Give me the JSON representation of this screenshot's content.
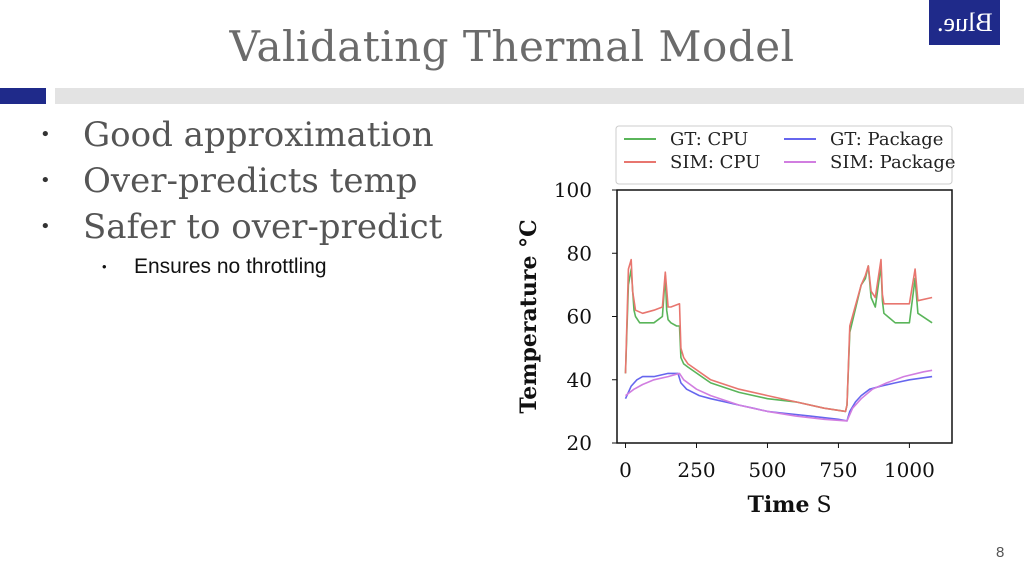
{
  "slide": {
    "title": "Validating Thermal Model",
    "logo_text": "Blue.",
    "page_number": "8",
    "bullets": [
      "Good approximation",
      "Over-predicts temp",
      "Safer to over-predict"
    ],
    "sub_bullets": [
      "Ensures no throttling"
    ],
    "colors": {
      "accent": "#1f2a8a",
      "title": "#6b6b6b",
      "rule": "#e3e3e3"
    }
  },
  "chart_data": {
    "type": "line",
    "title": "",
    "xlabel_bold": "Time",
    "xlabel_unit": "S",
    "ylabel": "Temperature °C",
    "xlim": [
      -30,
      1150
    ],
    "ylim": [
      20,
      100
    ],
    "xticks": [
      0,
      250,
      500,
      750,
      1000
    ],
    "yticks": [
      20,
      40,
      60,
      80,
      100
    ],
    "grid": false,
    "legend_position": "top",
    "series": [
      {
        "name": "GT: CPU",
        "color": "#5ab55a",
        "x": [
          0,
          10,
          20,
          30,
          35,
          50,
          55,
          100,
          130,
          140,
          145,
          150,
          160,
          180,
          190,
          195,
          205,
          220,
          300,
          400,
          500,
          600,
          700,
          775,
          780,
          790,
          830,
          845,
          855,
          865,
          880,
          900,
          905,
          910,
          950,
          1000,
          1020,
          1030,
          1080
        ],
        "y": [
          42,
          70,
          75,
          62,
          60,
          58,
          58,
          58,
          60,
          73,
          62,
          59,
          58,
          57,
          57,
          47,
          45,
          44,
          39,
          36,
          34,
          33,
          31,
          30,
          32,
          55,
          70,
          72,
          76,
          66,
          63,
          76,
          65,
          61,
          58,
          58,
          72,
          61,
          58
        ]
      },
      {
        "name": "SIM: CPU",
        "color": "#e8766f",
        "x": [
          0,
          10,
          20,
          25,
          35,
          60,
          100,
          130,
          140,
          150,
          160,
          190,
          195,
          205,
          220,
          300,
          400,
          500,
          600,
          700,
          775,
          780,
          790,
          830,
          845,
          855,
          865,
          880,
          900,
          905,
          910,
          950,
          1000,
          1020,
          1030,
          1080
        ],
        "y": [
          42,
          75,
          78,
          68,
          62,
          61,
          62,
          63,
          74,
          63,
          63,
          64,
          50,
          47,
          45,
          40,
          37,
          35,
          33,
          31,
          30,
          32,
          57,
          70,
          73,
          76,
          68,
          66,
          78,
          67,
          64,
          64,
          64,
          75,
          65,
          66
        ]
      },
      {
        "name": "GT: Package",
        "color": "#6666ee",
        "x": [
          0,
          20,
          40,
          60,
          100,
          150,
          185,
          195,
          215,
          260,
          300,
          350,
          400,
          450,
          500,
          550,
          600,
          650,
          700,
          750,
          780,
          790,
          810,
          830,
          860,
          900,
          950,
          1000,
          1080
        ],
        "y": [
          34,
          38,
          40,
          41,
          41,
          42,
          42,
          39,
          37,
          35,
          34,
          33,
          32,
          31,
          30,
          29.5,
          29,
          28.5,
          28,
          27.5,
          27,
          30,
          33,
          35,
          37,
          38,
          39,
          40,
          41
        ]
      },
      {
        "name": "SIM: Package",
        "color": "#d17ee0",
        "x": [
          0,
          30,
          60,
          100,
          150,
          190,
          205,
          250,
          300,
          400,
          500,
          600,
          700,
          780,
          800,
          830,
          870,
          920,
          980,
          1050,
          1080
        ],
        "y": [
          35,
          37,
          38.5,
          40,
          41,
          42,
          40,
          37,
          35,
          32,
          30,
          28.5,
          27.5,
          27,
          31,
          34,
          37,
          39,
          41,
          42.5,
          43
        ]
      }
    ]
  }
}
